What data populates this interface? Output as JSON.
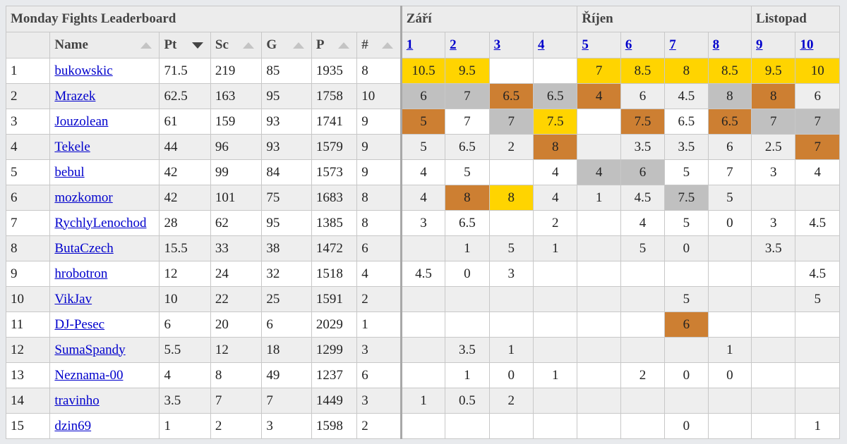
{
  "title": "Monday Fights Leaderboard",
  "months": [
    {
      "label": "Září",
      "span": 4
    },
    {
      "label": "Říjen",
      "span": 4
    },
    {
      "label": "Listopad",
      "span": 2
    }
  ],
  "columns": {
    "name": "Name",
    "pt": "Pt",
    "sc": "Sc",
    "g": "G",
    "p": "P",
    "count": "#"
  },
  "rounds": [
    "1",
    "2",
    "3",
    "4",
    "5",
    "6",
    "7",
    "8",
    "9",
    "10"
  ],
  "colors": {
    "gold": "#ffd400",
    "silver": "#c0c0c0",
    "bronze": "#cd7f32",
    "link": "#0000cc"
  },
  "rows": [
    {
      "rank": "1",
      "name": "bukowskic",
      "pt": "71.5",
      "sc": "219",
      "g": "85",
      "p": "1935",
      "count": "8",
      "scores": [
        {
          "v": "10.5",
          "m": "gold"
        },
        {
          "v": "9.5",
          "m": "gold"
        },
        {
          "v": "",
          "m": ""
        },
        {
          "v": "",
          "m": ""
        },
        {
          "v": "7",
          "m": "gold"
        },
        {
          "v": "8.5",
          "m": "gold"
        },
        {
          "v": "8",
          "m": "gold"
        },
        {
          "v": "8.5",
          "m": "gold"
        },
        {
          "v": "9.5",
          "m": "gold"
        },
        {
          "v": "10",
          "m": "gold"
        }
      ]
    },
    {
      "rank": "2",
      "name": "Mrazek",
      "pt": "62.5",
      "sc": "163",
      "g": "95",
      "p": "1758",
      "count": "10",
      "scores": [
        {
          "v": "6",
          "m": "silver"
        },
        {
          "v": "7",
          "m": "silver"
        },
        {
          "v": "6.5",
          "m": "bronze"
        },
        {
          "v": "6.5",
          "m": "silver"
        },
        {
          "v": "4",
          "m": "bronze"
        },
        {
          "v": "6",
          "m": ""
        },
        {
          "v": "4.5",
          "m": ""
        },
        {
          "v": "8",
          "m": "silver"
        },
        {
          "v": "8",
          "m": "bronze"
        },
        {
          "v": "6",
          "m": ""
        }
      ]
    },
    {
      "rank": "3",
      "name": "Jouzolean",
      "pt": "61",
      "sc": "159",
      "g": "93",
      "p": "1741",
      "count": "9",
      "scores": [
        {
          "v": "5",
          "m": "bronze"
        },
        {
          "v": "7",
          "m": ""
        },
        {
          "v": "7",
          "m": "silver"
        },
        {
          "v": "7.5",
          "m": "gold"
        },
        {
          "v": "",
          "m": ""
        },
        {
          "v": "7.5",
          "m": "bronze"
        },
        {
          "v": "6.5",
          "m": ""
        },
        {
          "v": "6.5",
          "m": "bronze"
        },
        {
          "v": "7",
          "m": "silver"
        },
        {
          "v": "7",
          "m": "silver"
        }
      ]
    },
    {
      "rank": "4",
      "name": "Tekele",
      "pt": "44",
      "sc": "96",
      "g": "93",
      "p": "1579",
      "count": "9",
      "scores": [
        {
          "v": "5",
          "m": ""
        },
        {
          "v": "6.5",
          "m": ""
        },
        {
          "v": "2",
          "m": ""
        },
        {
          "v": "8",
          "m": "bronze"
        },
        {
          "v": "",
          "m": ""
        },
        {
          "v": "3.5",
          "m": ""
        },
        {
          "v": "3.5",
          "m": ""
        },
        {
          "v": "6",
          "m": ""
        },
        {
          "v": "2.5",
          "m": ""
        },
        {
          "v": "7",
          "m": "bronze"
        }
      ]
    },
    {
      "rank": "5",
      "name": "bebul",
      "pt": "42",
      "sc": "99",
      "g": "84",
      "p": "1573",
      "count": "9",
      "scores": [
        {
          "v": "4",
          "m": ""
        },
        {
          "v": "5",
          "m": ""
        },
        {
          "v": "",
          "m": ""
        },
        {
          "v": "4",
          "m": ""
        },
        {
          "v": "4",
          "m": "silver"
        },
        {
          "v": "6",
          "m": "silver"
        },
        {
          "v": "5",
          "m": ""
        },
        {
          "v": "7",
          "m": ""
        },
        {
          "v": "3",
          "m": ""
        },
        {
          "v": "4",
          "m": ""
        }
      ]
    },
    {
      "rank": "6",
      "name": "mozkomor",
      "pt": "42",
      "sc": "101",
      "g": "75",
      "p": "1683",
      "count": "8",
      "scores": [
        {
          "v": "4",
          "m": ""
        },
        {
          "v": "8",
          "m": "bronze"
        },
        {
          "v": "8",
          "m": "gold"
        },
        {
          "v": "4",
          "m": ""
        },
        {
          "v": "1",
          "m": ""
        },
        {
          "v": "4.5",
          "m": ""
        },
        {
          "v": "7.5",
          "m": "silver"
        },
        {
          "v": "5",
          "m": ""
        },
        {
          "v": "",
          "m": ""
        },
        {
          "v": "",
          "m": ""
        }
      ]
    },
    {
      "rank": "7",
      "name": "RychlyLenochod",
      "pt": "28",
      "sc": "62",
      "g": "95",
      "p": "1385",
      "count": "8",
      "scores": [
        {
          "v": "3",
          "m": ""
        },
        {
          "v": "6.5",
          "m": ""
        },
        {
          "v": "",
          "m": ""
        },
        {
          "v": "2",
          "m": ""
        },
        {
          "v": "",
          "m": ""
        },
        {
          "v": "4",
          "m": ""
        },
        {
          "v": "5",
          "m": ""
        },
        {
          "v": "0",
          "m": ""
        },
        {
          "v": "3",
          "m": ""
        },
        {
          "v": "4.5",
          "m": ""
        }
      ]
    },
    {
      "rank": "8",
      "name": "ButaCzech",
      "pt": "15.5",
      "sc": "33",
      "g": "38",
      "p": "1472",
      "count": "6",
      "scores": [
        {
          "v": "",
          "m": ""
        },
        {
          "v": "1",
          "m": ""
        },
        {
          "v": "5",
          "m": ""
        },
        {
          "v": "1",
          "m": ""
        },
        {
          "v": "",
          "m": ""
        },
        {
          "v": "5",
          "m": ""
        },
        {
          "v": "0",
          "m": ""
        },
        {
          "v": "",
          "m": ""
        },
        {
          "v": "3.5",
          "m": ""
        },
        {
          "v": "",
          "m": ""
        }
      ]
    },
    {
      "rank": "9",
      "name": "hrobotron",
      "pt": "12",
      "sc": "24",
      "g": "32",
      "p": "1518",
      "count": "4",
      "scores": [
        {
          "v": "4.5",
          "m": ""
        },
        {
          "v": "0",
          "m": ""
        },
        {
          "v": "3",
          "m": ""
        },
        {
          "v": "",
          "m": ""
        },
        {
          "v": "",
          "m": ""
        },
        {
          "v": "",
          "m": ""
        },
        {
          "v": "",
          "m": ""
        },
        {
          "v": "",
          "m": ""
        },
        {
          "v": "",
          "m": ""
        },
        {
          "v": "4.5",
          "m": ""
        }
      ]
    },
    {
      "rank": "10",
      "name": "VikJav",
      "pt": "10",
      "sc": "22",
      "g": "25",
      "p": "1591",
      "count": "2",
      "scores": [
        {
          "v": "",
          "m": ""
        },
        {
          "v": "",
          "m": ""
        },
        {
          "v": "",
          "m": ""
        },
        {
          "v": "",
          "m": ""
        },
        {
          "v": "",
          "m": ""
        },
        {
          "v": "",
          "m": ""
        },
        {
          "v": "5",
          "m": ""
        },
        {
          "v": "",
          "m": ""
        },
        {
          "v": "",
          "m": ""
        },
        {
          "v": "5",
          "m": ""
        }
      ]
    },
    {
      "rank": "11",
      "name": "DJ-Pesec",
      "pt": "6",
      "sc": "20",
      "g": "6",
      "p": "2029",
      "count": "1",
      "scores": [
        {
          "v": "",
          "m": ""
        },
        {
          "v": "",
          "m": ""
        },
        {
          "v": "",
          "m": ""
        },
        {
          "v": "",
          "m": ""
        },
        {
          "v": "",
          "m": ""
        },
        {
          "v": "",
          "m": ""
        },
        {
          "v": "6",
          "m": "bronze"
        },
        {
          "v": "",
          "m": ""
        },
        {
          "v": "",
          "m": ""
        },
        {
          "v": "",
          "m": ""
        }
      ]
    },
    {
      "rank": "12",
      "name": "SumaSpandy",
      "pt": "5.5",
      "sc": "12",
      "g": "18",
      "p": "1299",
      "count": "3",
      "scores": [
        {
          "v": "",
          "m": ""
        },
        {
          "v": "3.5",
          "m": ""
        },
        {
          "v": "1",
          "m": ""
        },
        {
          "v": "",
          "m": ""
        },
        {
          "v": "",
          "m": ""
        },
        {
          "v": "",
          "m": ""
        },
        {
          "v": "",
          "m": ""
        },
        {
          "v": "1",
          "m": ""
        },
        {
          "v": "",
          "m": ""
        },
        {
          "v": "",
          "m": ""
        }
      ]
    },
    {
      "rank": "13",
      "name": "Neznama-00",
      "pt": "4",
      "sc": "8",
      "g": "49",
      "p": "1237",
      "count": "6",
      "scores": [
        {
          "v": "",
          "m": ""
        },
        {
          "v": "1",
          "m": ""
        },
        {
          "v": "0",
          "m": ""
        },
        {
          "v": "1",
          "m": ""
        },
        {
          "v": "",
          "m": ""
        },
        {
          "v": "2",
          "m": ""
        },
        {
          "v": "0",
          "m": ""
        },
        {
          "v": "0",
          "m": ""
        },
        {
          "v": "",
          "m": ""
        },
        {
          "v": "",
          "m": ""
        }
      ]
    },
    {
      "rank": "14",
      "name": "travinho",
      "pt": "3.5",
      "sc": "7",
      "g": "7",
      "p": "1449",
      "count": "3",
      "scores": [
        {
          "v": "1",
          "m": ""
        },
        {
          "v": "0.5",
          "m": ""
        },
        {
          "v": "2",
          "m": ""
        },
        {
          "v": "",
          "m": ""
        },
        {
          "v": "",
          "m": ""
        },
        {
          "v": "",
          "m": ""
        },
        {
          "v": "",
          "m": ""
        },
        {
          "v": "",
          "m": ""
        },
        {
          "v": "",
          "m": ""
        },
        {
          "v": "",
          "m": ""
        }
      ]
    },
    {
      "rank": "15",
      "name": "dzin69",
      "pt": "1",
      "sc": "2",
      "g": "3",
      "p": "1598",
      "count": "2",
      "scores": [
        {
          "v": "",
          "m": ""
        },
        {
          "v": "",
          "m": ""
        },
        {
          "v": "",
          "m": ""
        },
        {
          "v": "",
          "m": ""
        },
        {
          "v": "",
          "m": ""
        },
        {
          "v": "",
          "m": ""
        },
        {
          "v": "0",
          "m": ""
        },
        {
          "v": "",
          "m": ""
        },
        {
          "v": "",
          "m": ""
        },
        {
          "v": "1",
          "m": ""
        }
      ]
    }
  ]
}
